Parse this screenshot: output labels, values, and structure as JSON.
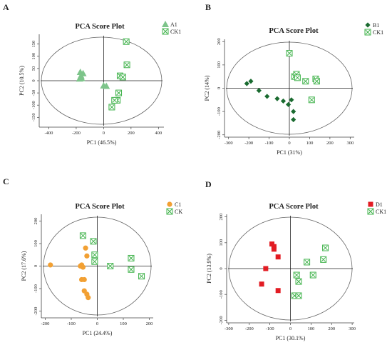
{
  "chart_data": [
    {
      "panel": "A",
      "type": "scatter",
      "title": "PCA Score Plot",
      "xlabel": "PC1 (46.5%)",
      "ylabel": "PC2 (10.5%)",
      "xlim": [
        -470,
        440
      ],
      "ylim": [
        -190,
        190
      ],
      "xticks": [
        -400,
        -200,
        0,
        200,
        400
      ],
      "yticks": [
        -150,
        -100,
        -50,
        0,
        50,
        100,
        150
      ],
      "series": [
        {
          "name": "A1",
          "marker": "triangle",
          "color": "#7dc48a",
          "points": [
            [
              -170,
              35
            ],
            [
              -150,
              30
            ],
            [
              -165,
              20
            ],
            [
              -160,
              10
            ],
            [
              -175,
              8
            ],
            [
              0,
              -20
            ],
            [
              20,
              -22
            ]
          ]
        },
        {
          "name": "CK1",
          "marker": "xsquare",
          "color": "#3fb24a",
          "points": [
            [
              165,
              160
            ],
            [
              170,
              65
            ],
            [
              120,
              20
            ],
            [
              140,
              15
            ],
            [
              110,
              -50
            ],
            [
              100,
              -80
            ],
            [
              80,
              -80
            ],
            [
              60,
              -108
            ]
          ]
        }
      ]
    },
    {
      "panel": "B",
      "type": "scatter",
      "title": "PCA Score Plot",
      "xlabel": "PC1 (31%)",
      "ylabel": "PC2 (14%)",
      "xlim": [
        -320,
        320
      ],
      "ylim": [
        -210,
        210
      ],
      "xticks": [
        -300,
        -200,
        -100,
        0,
        100,
        200,
        300
      ],
      "yticks": [
        -200,
        -100,
        0,
        100,
        200
      ],
      "series": [
        {
          "name": "B1",
          "marker": "diamond",
          "color": "#1a6b30",
          "points": [
            [
              -210,
              20
            ],
            [
              -190,
              30
            ],
            [
              -150,
              -10
            ],
            [
              -110,
              -35
            ],
            [
              -60,
              -45
            ],
            [
              -30,
              -55
            ],
            [
              -5,
              -70
            ],
            [
              10,
              -50
            ],
            [
              20,
              -100
            ],
            [
              20,
              -135
            ]
          ]
        },
        {
          "name": "CK1",
          "marker": "xsquare",
          "color": "#3fb24a",
          "points": [
            [
              0,
              150
            ],
            [
              25,
              50
            ],
            [
              35,
              60
            ],
            [
              40,
              45
            ],
            [
              80,
              30
            ],
            [
              130,
              40
            ],
            [
              135,
              30
            ],
            [
              110,
              -50
            ]
          ]
        }
      ]
    },
    {
      "panel": "C",
      "type": "scatter",
      "title": "PCA Score Plot",
      "xlabel": "PC1 (24.4%)",
      "ylabel": "PC2 (17.6%)",
      "xlim": [
        -215,
        215
      ],
      "ylim": [
        -230,
        230
      ],
      "xticks": [
        -200,
        -100,
        0,
        100,
        200
      ],
      "yticks": [
        -200,
        -100,
        0,
        100,
        200
      ],
      "series": [
        {
          "name": "C1",
          "marker": "circle",
          "color": "#f2a033",
          "points": [
            [
              -180,
              5
            ],
            [
              -65,
              0
            ],
            [
              -60,
              5
            ],
            [
              -55,
              -5
            ],
            [
              -60,
              -60
            ],
            [
              -50,
              -60
            ],
            [
              -45,
              80
            ],
            [
              -40,
              45
            ],
            [
              -50,
              -110
            ],
            [
              -40,
              -125
            ],
            [
              -35,
              -140
            ]
          ]
        },
        {
          "name": "CK",
          "marker": "xsquare",
          "color": "#3fb24a",
          "points": [
            [
              -55,
              135
            ],
            [
              -15,
              110
            ],
            [
              -10,
              50
            ],
            [
              -10,
              20
            ],
            [
              50,
              0
            ],
            [
              130,
              35
            ],
            [
              130,
              -15
            ],
            [
              170,
              -45
            ]
          ]
        }
      ]
    },
    {
      "panel": "D",
      "type": "scatter",
      "title": "PCA Score Plot",
      "xlabel": "PC1 (30.1%)",
      "ylabel": "PC2 (13.9%)",
      "xlim": [
        -310,
        310
      ],
      "ylim": [
        -210,
        210
      ],
      "xticks": [
        -300,
        -200,
        -100,
        0,
        100,
        200,
        300
      ],
      "yticks": [
        -200,
        -100,
        0,
        100,
        200
      ],
      "series": [
        {
          "name": "D1",
          "marker": "square",
          "color": "#e21c23",
          "points": [
            [
              -90,
              95
            ],
            [
              -80,
              85
            ],
            [
              -80,
              75
            ],
            [
              -60,
              45
            ],
            [
              -120,
              0
            ],
            [
              -140,
              -60
            ],
            [
              -60,
              -85
            ]
          ]
        },
        {
          "name": "CK1",
          "marker": "xsquare",
          "color": "#3fb24a",
          "points": [
            [
              170,
              80
            ],
            [
              160,
              35
            ],
            [
              80,
              25
            ],
            [
              110,
              -25
            ],
            [
              30,
              -25
            ],
            [
              40,
              -50
            ],
            [
              20,
              -105
            ],
            [
              40,
              -105
            ]
          ]
        }
      ]
    }
  ]
}
